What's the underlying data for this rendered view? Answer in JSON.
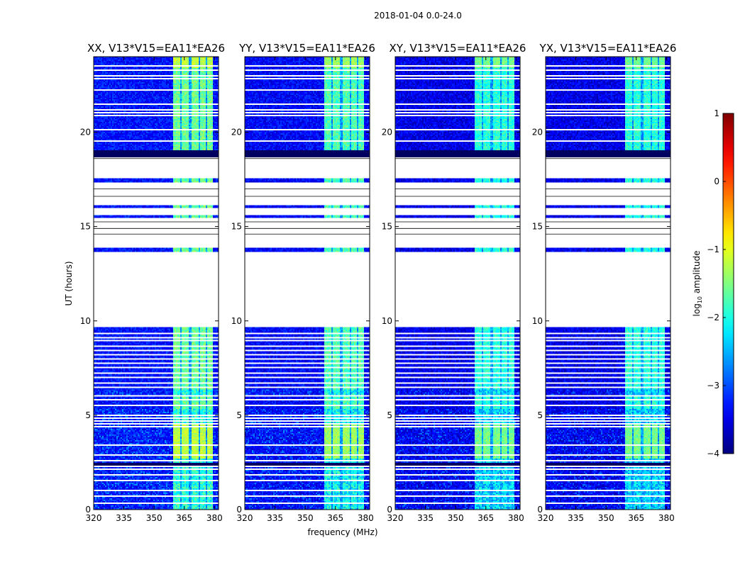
{
  "figure": {
    "suptitle": "2018-01-04 0.0-24.0"
  },
  "chart_data": {
    "type": "heatmap",
    "panels": [
      {
        "title": "XX, V13*V15=EA11*EA26",
        "pol": "XX"
      },
      {
        "title": "YY, V13*V15=EA11*EA26",
        "pol": "YY"
      },
      {
        "title": "XY, V13*V15=EA11*EA26",
        "pol": "XY"
      },
      {
        "title": "YX, V13*V15=EA11*EA26",
        "pol": "YX"
      }
    ],
    "xlabel": "frequency (MHz)",
    "ylabel": "UT (hours)",
    "xlim": [
      320,
      382
    ],
    "ylim": [
      0,
      24
    ],
    "x_ticks": [
      320,
      335,
      350,
      365,
      380
    ],
    "x_tick_labels": [
      "320",
      "335",
      "350",
      "365",
      "380"
    ],
    "y_ticks": [
      0,
      5,
      10,
      15,
      20
    ],
    "y_tick_labels": [
      "0",
      "5",
      "10",
      "15",
      "20"
    ],
    "colorbar": {
      "label_main": "log",
      "label_sub": "10",
      "label_rest": " amplitude",
      "range": [
        -4,
        1
      ],
      "ticks": [
        -4,
        -3,
        -2,
        -1,
        0,
        1
      ],
      "tick_labels": [
        "−4",
        "−3",
        "−2",
        "−1",
        "0",
        "1"
      ],
      "colormap": "jet"
    },
    "rfi_band_mhz": [
      359.5,
      379.5
    ],
    "rfi_subband_mhz": [
      [
        359.5,
        363
      ],
      [
        364,
        367.5
      ],
      [
        368.5,
        372
      ],
      [
        373,
        376
      ],
      [
        376.5,
        379.5
      ]
    ],
    "data_blocks_hours": [
      [
        0,
        9.65
      ],
      [
        13.65,
        13.85
      ],
      [
        15.45,
        15.6
      ],
      [
        16.0,
        16.15
      ],
      [
        17.3,
        17.55
      ],
      [
        18.7,
        24
      ]
    ],
    "flagged_lines_hours": [
      0.35,
      0.75,
      1.05,
      1.55,
      1.85,
      2.15,
      2.35,
      2.6,
      2.9,
      3.45,
      4.45,
      4.6,
      4.75,
      4.9,
      5.05,
      5.55,
      5.85,
      6.05,
      6.5,
      6.75,
      7.05,
      7.25,
      7.55,
      7.8,
      8.05,
      8.25,
      8.45,
      8.7,
      9.0,
      9.15,
      9.4,
      17.05,
      17.15,
      18.55,
      19.55,
      20.2,
      20.95,
      21.05,
      21.25,
      21.5,
      22.25,
      22.3,
      22.85,
      23.0,
      23.35,
      23.55
    ],
    "dark_rows_hours": [
      [
        18.7,
        19.05
      ],
      [
        2.35,
        2.5
      ]
    ],
    "dense_rfi_hours": [
      [
        0,
        5.3
      ],
      [
        6.0,
        6.4
      ]
    ],
    "high_rfi_hours": [
      [
        2.7,
        4.5
      ],
      [
        23.4,
        24
      ]
    ]
  }
}
